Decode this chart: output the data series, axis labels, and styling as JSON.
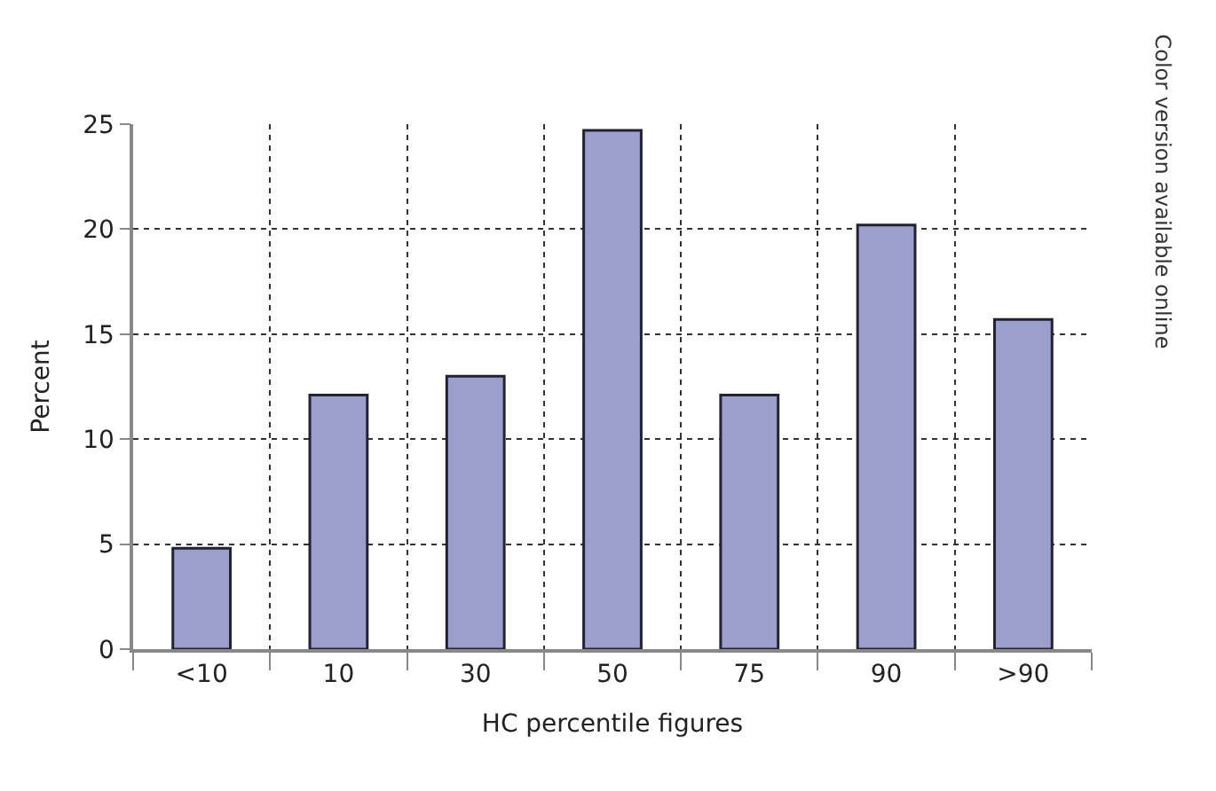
{
  "chart_data": {
    "type": "bar",
    "categories": [
      "<10",
      "10",
      "30",
      "50",
      "75",
      "90",
      ">90"
    ],
    "values": [
      4.8,
      12.1,
      13,
      24.7,
      12.1,
      20.2,
      15.7
    ],
    "color": "#9a9fcc",
    "xlabel": "HC percentile figures",
    "ylabel": "Percent",
    "ylim": [
      0,
      25
    ],
    "yticks": [
      0,
      5,
      10,
      15,
      20,
      25
    ],
    "grid": true,
    "annotations": [
      "Color version available online"
    ]
  }
}
